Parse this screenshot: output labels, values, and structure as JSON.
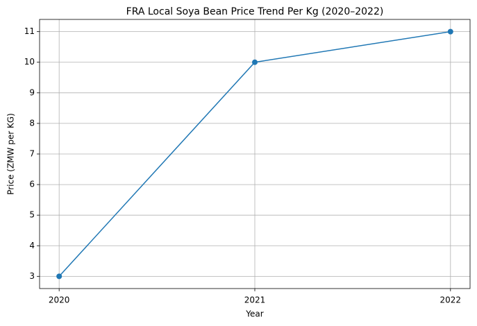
{
  "chart_data": {
    "type": "line",
    "title": "FRA Local Soya Bean Price Trend Per Kg (2020–2022)",
    "x_label": "Year",
    "y_label": "Price (ZMW per KG)",
    "x": [
      2020,
      2021,
      2022
    ],
    "series": [
      {
        "name": "Price",
        "color": "#1f77b4",
        "values": [
          3,
          10,
          11
        ]
      }
    ],
    "xlim": [
      2019.9,
      2022.1
    ],
    "xticks": [
      2020,
      2021,
      2022
    ],
    "ylim": [
      2.6,
      11.4
    ],
    "yticks": [
      3,
      4,
      5,
      6,
      7,
      8,
      9,
      10,
      11
    ],
    "grid": true,
    "markers": true
  }
}
